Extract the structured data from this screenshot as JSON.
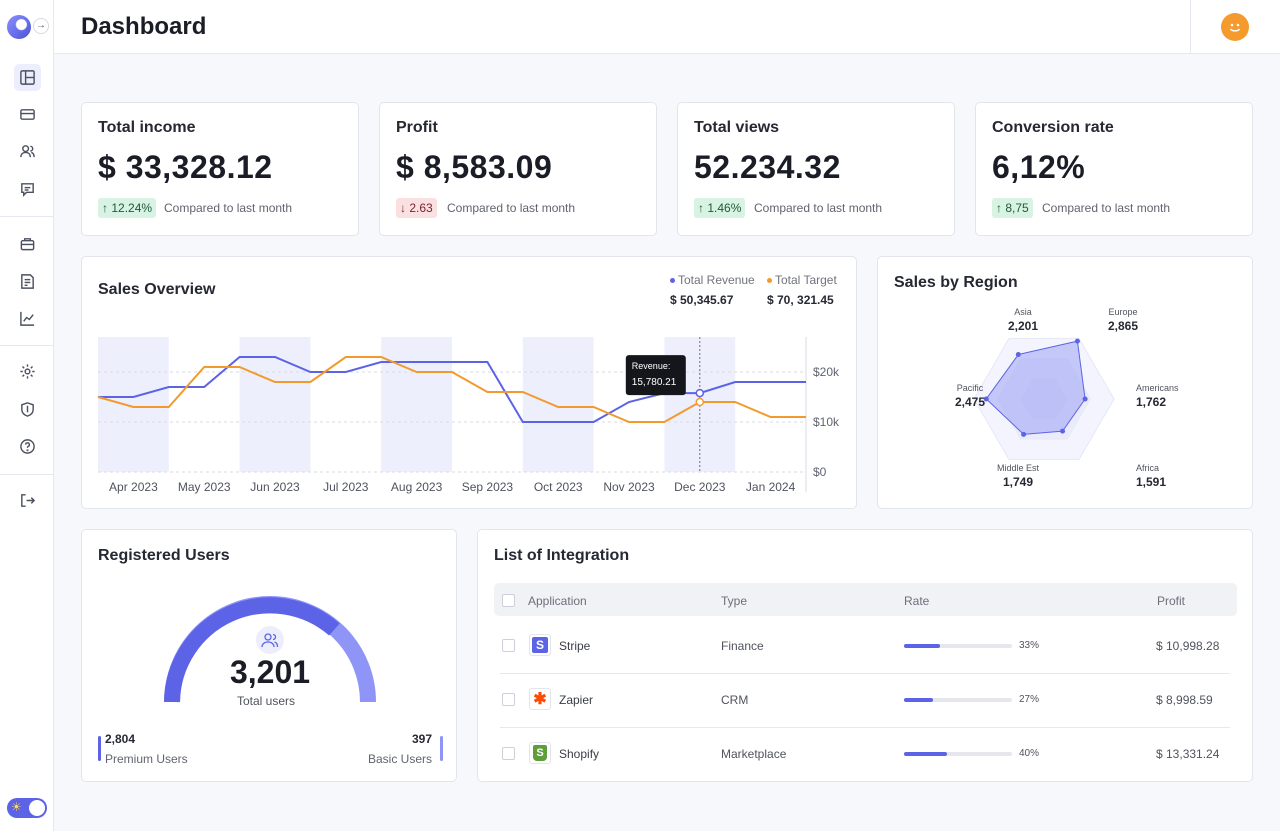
{
  "header": {
    "title": "Dashboard"
  },
  "sidebar": {
    "icons": [
      "layout-icon",
      "credit-card-icon",
      "users-icon",
      "chat-icon",
      "briefcase-icon",
      "report-icon",
      "trend-icon",
      "settings-icon",
      "shield-icon",
      "help-icon",
      "logout-icon"
    ]
  },
  "stats": [
    {
      "title": "Total income",
      "value": "$ 33,328.12",
      "change": "12.24%",
      "direction": "up",
      "compare": "Compared to last month"
    },
    {
      "title": "Profit",
      "value": "$ 8,583.09",
      "change": "2.63",
      "direction": "down",
      "compare": "Compared to last month"
    },
    {
      "title": "Total views",
      "value": "52.234.32",
      "change": "1.46%",
      "direction": "up",
      "compare": "Compared to last month"
    },
    {
      "title": "Conversion rate",
      "value": "6,12%",
      "change": "8,75",
      "direction": "up",
      "compare": "Compared to last month"
    }
  ],
  "sales_overview": {
    "title": "Sales Overview",
    "legend": [
      {
        "label": "Total Revenue",
        "value": "$ 50,345.67",
        "color": "#5c63e6"
      },
      {
        "label": "Total Target",
        "value": "$ 70, 321.45",
        "color": "#f29a2e"
      }
    ],
    "tooltip": {
      "label": "Revenue:",
      "value": "15,780.21"
    }
  },
  "chart_data": [
    {
      "type": "line",
      "title": "Sales Overview",
      "categories": [
        "Apr 2023",
        "May 2023",
        "Jun 2023",
        "Jul 2023",
        "Aug 2023",
        "Sep 2023",
        "Oct 2023",
        "Nov 2023",
        "Dec 2023",
        "Jan 2024"
      ],
      "y_ticks": [
        "$20k",
        "$10k",
        "$0"
      ],
      "ylim": [
        0,
        27000
      ],
      "x": [
        0,
        0.5,
        1,
        1.5,
        2,
        2.5,
        3,
        3.5,
        4,
        4.5,
        5,
        5.5,
        6,
        6.5,
        7,
        7.5,
        8,
        8.5,
        9,
        9.5,
        10
      ],
      "series": [
        {
          "name": "Total Revenue",
          "color": "#5c63e6",
          "values": [
            15000,
            15000,
            17000,
            17000,
            23000,
            23000,
            20000,
            20000,
            22000,
            22000,
            22000,
            22000,
            10000,
            10000,
            10000,
            14000,
            15780,
            15780,
            18000,
            18000,
            18000
          ]
        },
        {
          "name": "Total Target",
          "color": "#f29a2e",
          "values": [
            15000,
            13000,
            13000,
            21000,
            21000,
            18000,
            18000,
            23000,
            23000,
            20000,
            20000,
            16000,
            16000,
            13000,
            13000,
            10000,
            10000,
            14000,
            14000,
            11000,
            11000
          ]
        }
      ]
    },
    {
      "type": "radar",
      "title": "Sales by Region",
      "categories": [
        "Asia",
        "Europe",
        "Americans",
        "Africa",
        "Middle Est",
        "Pacific"
      ],
      "values": [
        2201,
        2865,
        1762,
        1591,
        1749,
        2475
      ],
      "labels": [
        "2,201",
        "2,865",
        "1,762",
        "1,591",
        "1,749",
        "2,475"
      ]
    },
    {
      "type": "gauge",
      "title": "Registered Users",
      "total": 3201,
      "segments": [
        {
          "name": "Premium Users",
          "value": 2804
        },
        {
          "name": "Basic Users",
          "value": 397
        }
      ]
    }
  ],
  "region": {
    "title": "Sales by Region"
  },
  "users": {
    "title": "Registered Users",
    "total": "3,201",
    "total_label": "Total users",
    "premium_count": "2,804",
    "premium_label": "Premium Users",
    "basic_count": "397",
    "basic_label": "Basic Users"
  },
  "integration": {
    "title": "List of Integration",
    "headers": {
      "application": "Application",
      "type": "Type",
      "rate": "Rate",
      "profit": "Profit"
    },
    "rows": [
      {
        "name": "Stripe",
        "type": "Finance",
        "rate": 0.33,
        "rate_label": "33%",
        "profit": "$ 10,998.28",
        "logo_color": "#5c63e6",
        "logo_glyph": "S"
      },
      {
        "name": "Zapier",
        "type": "CRM",
        "rate": 0.27,
        "rate_label": "27%",
        "profit": "$ 8,998.59",
        "logo_color": "#ff4a00",
        "logo_glyph": "✱"
      },
      {
        "name": "Shopify",
        "type": "Marketplace",
        "rate": 0.4,
        "rate_label": "40%",
        "profit": "$ 13,331.24",
        "logo_color": "#5e9e3b",
        "logo_glyph": "S"
      }
    ]
  }
}
